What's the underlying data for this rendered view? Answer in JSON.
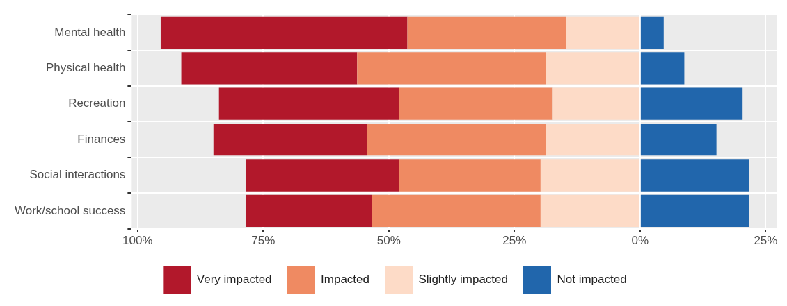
{
  "chart_data": {
    "type": "bar",
    "orientation": "horizontal",
    "stacked": true,
    "categories": [
      "Mental health",
      "Physical health",
      "Recreation",
      "Finances",
      "Social interactions",
      "Work/school success"
    ],
    "series": [
      {
        "name": "Slightly impacted",
        "color": "#fddbc7",
        "values": [
          -14.7,
          -18.7,
          -17.5,
          -18.7,
          -19.8,
          -19.8
        ]
      },
      {
        "name": "Impacted",
        "color": "#ef8a62",
        "values": [
          -31.6,
          -37.6,
          -30.5,
          -35.7,
          -28.2,
          -33.5
        ]
      },
      {
        "name": "Very impacted",
        "color": "#b2182b",
        "values": [
          -49.1,
          -35.0,
          -35.8,
          -30.5,
          -30.5,
          -25.2
        ]
      },
      {
        "name": "Not impacted",
        "color": "#2166ac",
        "values": [
          4.7,
          8.8,
          20.4,
          15.2,
          21.7,
          21.7
        ]
      }
    ],
    "xlim": [
      -101.3,
      27.3
    ],
    "xticks": [
      {
        "value": -100,
        "label": "100%"
      },
      {
        "value": -75,
        "label": "75%"
      },
      {
        "value": -50,
        "label": "50%"
      },
      {
        "value": -25,
        "label": "25%"
      },
      {
        "value": 0,
        "label": "0%"
      },
      {
        "value": 25,
        "label": "25%"
      }
    ],
    "grid": true,
    "legend": "bottom"
  }
}
